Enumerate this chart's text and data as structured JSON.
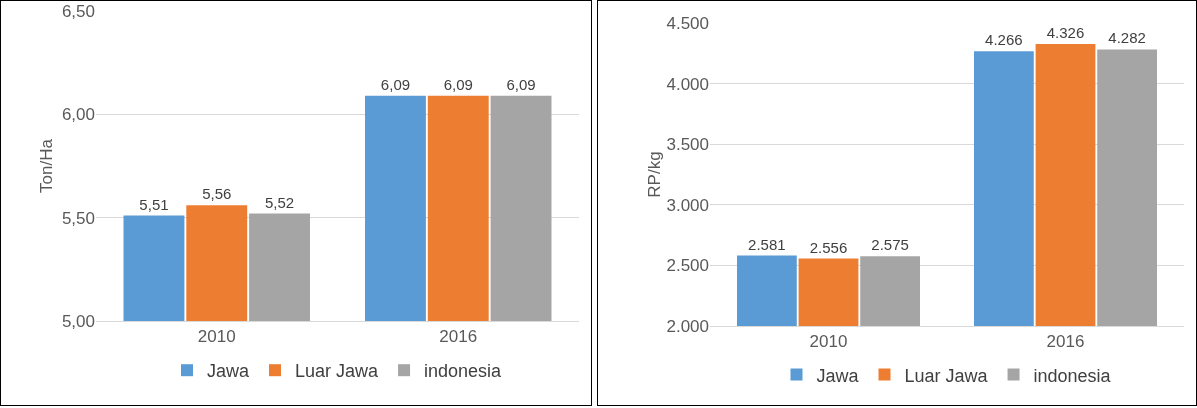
{
  "chart_data": [
    {
      "type": "bar",
      "ylabel": "Ton/Ha",
      "categories": [
        "2010",
        "2016"
      ],
      "ylim": [
        5,
        6.5
      ],
      "yticks": [
        {
          "value": 5,
          "label": "5,00"
        },
        {
          "value": 5.5,
          "label": "5,50"
        },
        {
          "value": 6,
          "label": "6,00"
        },
        {
          "value": 6.5,
          "label": "6,50"
        }
      ],
      "grid": "y",
      "legend": "bottom",
      "series": [
        {
          "name": "Jawa",
          "color": "#5b9bd5",
          "values": [
            5.51,
            6.09
          ],
          "value_labels": [
            "5,51",
            "6,09"
          ]
        },
        {
          "name": "Luar Jawa",
          "color": "#ed7d31",
          "values": [
            5.56,
            6.09
          ],
          "value_labels": [
            "5,56",
            "6,09"
          ]
        },
        {
          "name": "indonesia",
          "color": "#a5a5a5",
          "values": [
            5.52,
            6.09
          ],
          "value_labels": [
            "5,52",
            "6,09"
          ]
        }
      ]
    },
    {
      "type": "bar",
      "ylabel": "RP/kg",
      "categories": [
        "2010",
        "2016"
      ],
      "ylim": [
        2000,
        4500
      ],
      "yticks": [
        {
          "value": 2000,
          "label": "2.000"
        },
        {
          "value": 2500,
          "label": "2.500"
        },
        {
          "value": 3000,
          "label": "3.000"
        },
        {
          "value": 3500,
          "label": "3.500"
        },
        {
          "value": 4000,
          "label": "4.000"
        },
        {
          "value": 4500,
          "label": "4.500"
        }
      ],
      "grid": "y",
      "legend": "bottom",
      "series": [
        {
          "name": "Jawa",
          "color": "#5b9bd5",
          "values": [
            2581,
            4266
          ],
          "value_labels": [
            "2.581",
            "4.266"
          ]
        },
        {
          "name": "Luar Jawa",
          "color": "#ed7d31",
          "values": [
            2556,
            4326
          ],
          "value_labels": [
            "2.556",
            "4.326"
          ]
        },
        {
          "name": "indonesia",
          "color": "#a5a5a5",
          "values": [
            2575,
            4282
          ],
          "value_labels": [
            "2.575",
            "4.282"
          ]
        }
      ]
    }
  ]
}
